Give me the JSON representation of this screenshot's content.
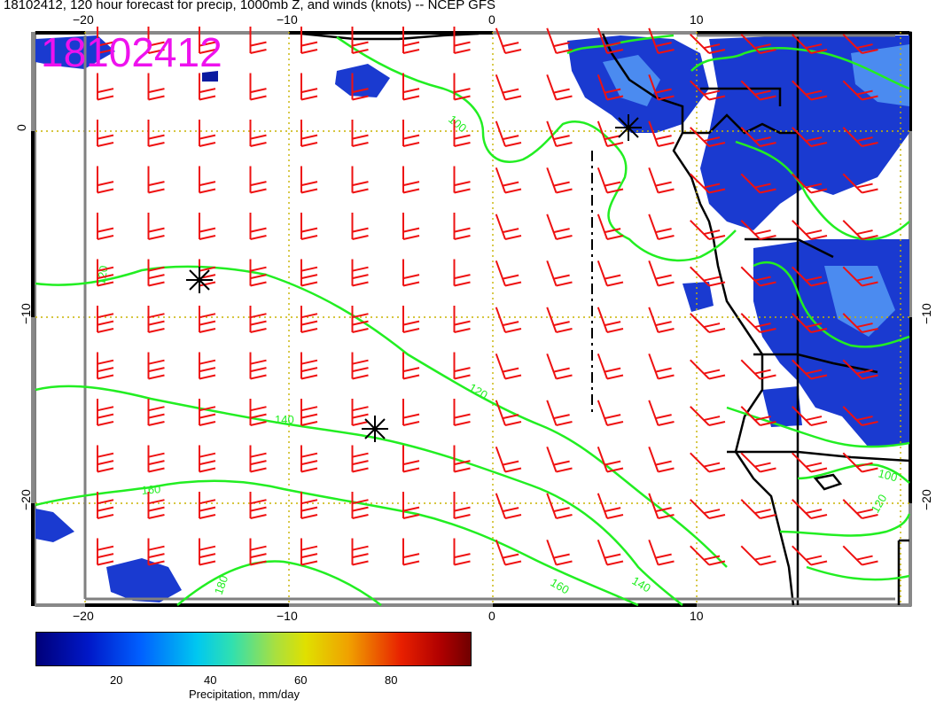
{
  "header": {
    "title": "18102412, 120 hour forecast for precip, 1000mb Z, and winds (knots) -- NCEP GFS",
    "stamp": "18102412"
  },
  "axes": {
    "lon_ticks_top": [
      "−20",
      "−10",
      "0",
      "10"
    ],
    "lon_ticks_bottom": [
      "−20",
      "−10",
      "0",
      "10"
    ],
    "lat_ticks_left": [
      "0",
      "−10",
      "−20"
    ],
    "lat_ticks_right": [
      "−10",
      "−20"
    ]
  },
  "contours": {
    "color": "#22ee22",
    "labels": [
      "100",
      "120",
      "120",
      "140",
      "160",
      "180",
      "160",
      "140",
      "100",
      "120"
    ]
  },
  "wind_barbs": {
    "color": "#ee1111",
    "units": "knots"
  },
  "markers": [
    "star",
    "star",
    "star"
  ],
  "colorbar": {
    "ticks": [
      "20",
      "40",
      "60",
      "80"
    ],
    "title": "Precipitation, mm/day",
    "colors": [
      "#00007a",
      "#0018c8",
      "#0060ff",
      "#00c8f0",
      "#30e0b0",
      "#a8e040",
      "#e0e000",
      "#f0a000",
      "#e82000",
      "#b00000",
      "#700000"
    ]
  }
}
